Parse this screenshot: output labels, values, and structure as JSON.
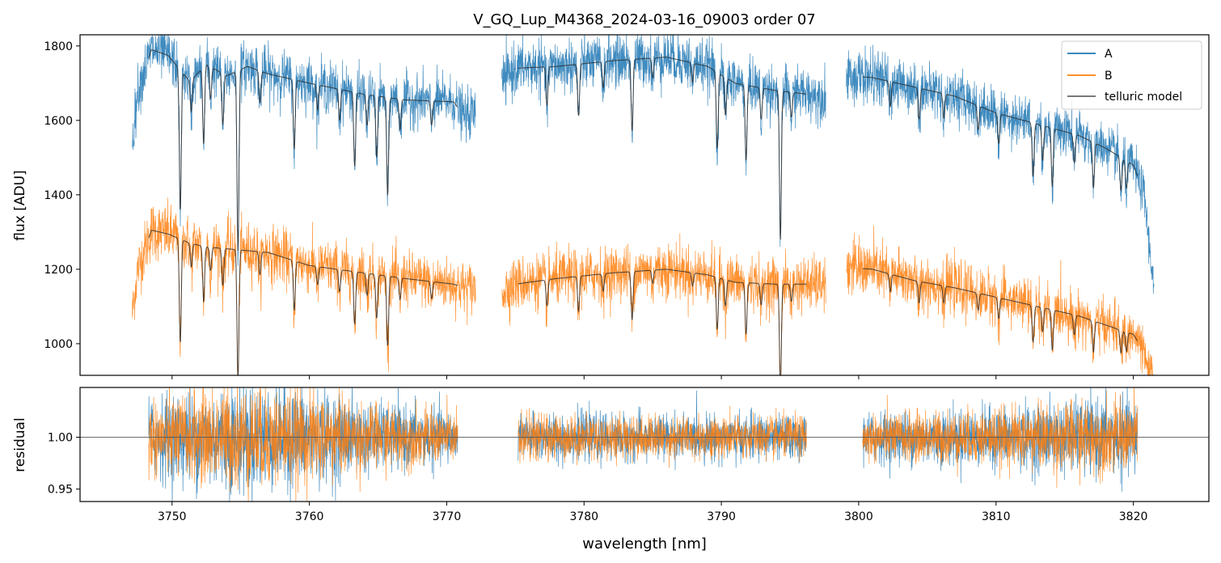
{
  "title": "V_GQ_Lup_M4368_2024-03-16_09003  order 07",
  "colors": {
    "A": "#1f77b4",
    "B": "#ff7f0e",
    "model": "#2b2b2b",
    "legend_model": "#666666"
  },
  "chart_data": [
    {
      "id": "flux",
      "type": "line",
      "ylabel": "flux [ADU]",
      "xlim": [
        3743.3,
        3825.5
      ],
      "ylim": [
        915,
        1830
      ],
      "yticks": [
        1000,
        1200,
        1400,
        1600,
        1800
      ],
      "legend": {
        "placement": "top-right",
        "entries": [
          "A",
          "B",
          "telluric model"
        ]
      },
      "segments": [
        {
          "x": [
            3747.1,
            3772.1
          ],
          "A_cont": [
            [
              3747.1,
              1540
            ],
            [
              3747.5,
              1680
            ],
            [
              3748.5,
              1790
            ],
            [
              3749.7,
              1775
            ],
            [
              3751.3,
              1705
            ],
            [
              3752.5,
              1750
            ],
            [
              3754.0,
              1720
            ],
            [
              3755.5,
              1745
            ],
            [
              3757.0,
              1725
            ],
            [
              3760.0,
              1700
            ],
            [
              3764.0,
              1670
            ],
            [
              3767.0,
              1655
            ],
            [
              3770.5,
              1650
            ],
            [
              3771.3,
              1610
            ],
            [
              3772.1,
              1620
            ]
          ],
          "B_cont": [
            [
              3747.1,
              1080
            ],
            [
              3747.5,
              1200
            ],
            [
              3748.5,
              1305
            ],
            [
              3749.7,
              1295
            ],
            [
              3751.3,
              1270
            ],
            [
              3752.5,
              1260
            ],
            [
              3754.0,
              1255
            ],
            [
              3755.5,
              1250
            ],
            [
              3757.0,
              1245
            ],
            [
              3760.0,
              1210
            ],
            [
              3764.0,
              1190
            ],
            [
              3767.0,
              1175
            ],
            [
              3770.5,
              1160
            ],
            [
              3771.3,
              1150
            ],
            [
              3772.1,
              1150
            ]
          ],
          "model_range": [
            3748.3,
            3770.8
          ]
        },
        {
          "x": [
            3774.0,
            3797.6
          ],
          "A_cont": [
            [
              3774.0,
              1700
            ],
            [
              3775.0,
              1740
            ],
            [
              3778.0,
              1745
            ],
            [
              3782.0,
              1760
            ],
            [
              3786.0,
              1770
            ],
            [
              3789.0,
              1745
            ],
            [
              3791.0,
              1700
            ],
            [
              3794.0,
              1680
            ],
            [
              3797.6,
              1665
            ]
          ],
          "B_cont": [
            [
              3774.0,
              1140
            ],
            [
              3775.0,
              1160
            ],
            [
              3778.0,
              1175
            ],
            [
              3782.0,
              1190
            ],
            [
              3786.0,
              1200
            ],
            [
              3789.0,
              1185
            ],
            [
              3791.0,
              1165
            ],
            [
              3794.0,
              1160
            ],
            [
              3797.6,
              1160
            ]
          ],
          "model_range": [
            3775.2,
            3796.2
          ]
        },
        {
          "x": [
            3799.1,
            3821.5
          ],
          "A_cont": [
            [
              3799.1,
              1720
            ],
            [
              3801.0,
              1715
            ],
            [
              3804.0,
              1690
            ],
            [
              3807.0,
              1665
            ],
            [
              3810.0,
              1620
            ],
            [
              3813.0,
              1590
            ],
            [
              3816.0,
              1560
            ],
            [
              3818.0,
              1525
            ],
            [
              3820.0,
              1480
            ],
            [
              3820.8,
              1400
            ],
            [
              3821.2,
              1250
            ],
            [
              3821.5,
              1150
            ]
          ],
          "B_cont": [
            [
              3799.1,
              1205
            ],
            [
              3801.0,
              1200
            ],
            [
              3804.0,
              1170
            ],
            [
              3807.0,
              1150
            ],
            [
              3810.0,
              1125
            ],
            [
              3813.0,
              1100
            ],
            [
              3816.0,
              1075
            ],
            [
              3818.0,
              1050
            ],
            [
              3820.0,
              1025
            ],
            [
              3820.6,
              990
            ],
            [
              3821.0,
              940
            ],
            [
              3821.3,
              915
            ]
          ],
          "model_range": [
            3800.3,
            3820.3
          ]
        }
      ],
      "absorption_lines": [
        {
          "x": 3750.6,
          "depth": 0.22
        },
        {
          "x": 3751.4,
          "depth": 0.05
        },
        {
          "x": 3752.3,
          "depth": 0.12
        },
        {
          "x": 3752.8,
          "depth": 0.05
        },
        {
          "x": 3753.7,
          "depth": 0.08
        },
        {
          "x": 3754.8,
          "depth": 0.28
        },
        {
          "x": 3756.4,
          "depth": 0.05
        },
        {
          "x": 3758.9,
          "depth": 0.11
        },
        {
          "x": 3760.6,
          "depth": 0.04
        },
        {
          "x": 3762.2,
          "depth": 0.05
        },
        {
          "x": 3763.3,
          "depth": 0.12
        },
        {
          "x": 3764.2,
          "depth": 0.05
        },
        {
          "x": 3764.9,
          "depth": 0.1
        },
        {
          "x": 3765.7,
          "depth": 0.16
        },
        {
          "x": 3766.6,
          "depth": 0.05
        },
        {
          "x": 3768.9,
          "depth": 0.04
        },
        {
          "x": 3777.3,
          "depth": 0.06
        },
        {
          "x": 3779.6,
          "depth": 0.08
        },
        {
          "x": 3781.4,
          "depth": 0.04
        },
        {
          "x": 3783.5,
          "depth": 0.11
        },
        {
          "x": 3785.0,
          "depth": 0.03
        },
        {
          "x": 3787.9,
          "depth": 0.03
        },
        {
          "x": 3789.7,
          "depth": 0.12
        },
        {
          "x": 3790.3,
          "depth": 0.06
        },
        {
          "x": 3791.8,
          "depth": 0.12
        },
        {
          "x": 3792.9,
          "depth": 0.05
        },
        {
          "x": 3794.3,
          "depth": 0.24
        },
        {
          "x": 3795.1,
          "depth": 0.04
        },
        {
          "x": 3802.3,
          "depth": 0.04
        },
        {
          "x": 3804.4,
          "depth": 0.05
        },
        {
          "x": 3806.2,
          "depth": 0.04
        },
        {
          "x": 3808.7,
          "depth": 0.04
        },
        {
          "x": 3810.2,
          "depth": 0.05
        },
        {
          "x": 3812.7,
          "depth": 0.09
        },
        {
          "x": 3813.4,
          "depth": 0.06
        },
        {
          "x": 3814.1,
          "depth": 0.1
        },
        {
          "x": 3815.7,
          "depth": 0.05
        },
        {
          "x": 3817.1,
          "depth": 0.08
        },
        {
          "x": 3819.1,
          "depth": 0.06
        },
        {
          "x": 3819.5,
          "depth": 0.05
        }
      ],
      "noise_rel": {
        "A": 0.02,
        "B": 0.03
      }
    },
    {
      "id": "residual",
      "type": "line",
      "xlabel": "wavelength [nm]",
      "ylabel": "residual",
      "xlim": [
        3743.3,
        3825.5
      ],
      "ylim": [
        0.938,
        1.048
      ],
      "yticks": [
        0.95,
        1.0
      ],
      "xticks": [
        3750,
        3760,
        3770,
        3780,
        3790,
        3800,
        3810,
        3820
      ],
      "reference_line": 1.0,
      "segments": [
        {
          "x": [
            3748.3,
            3770.8
          ],
          "sigma": [
            [
              3748.3,
              0.018
            ],
            [
              3755.0,
              0.025
            ],
            [
              3760.0,
              0.022
            ],
            [
              3765.0,
              0.015
            ],
            [
              3770.8,
              0.012
            ]
          ]
        },
        {
          "x": [
            3775.2,
            3796.2
          ],
          "sigma": [
            [
              3775.2,
              0.011
            ],
            [
              3786.0,
              0.01
            ],
            [
              3796.2,
              0.01
            ]
          ]
        },
        {
          "x": [
            3800.3,
            3820.3
          ],
          "sigma": [
            [
              3800.3,
              0.011
            ],
            [
              3810.0,
              0.013
            ],
            [
              3815.0,
              0.016
            ],
            [
              3820.3,
              0.017
            ]
          ]
        }
      ]
    }
  ]
}
